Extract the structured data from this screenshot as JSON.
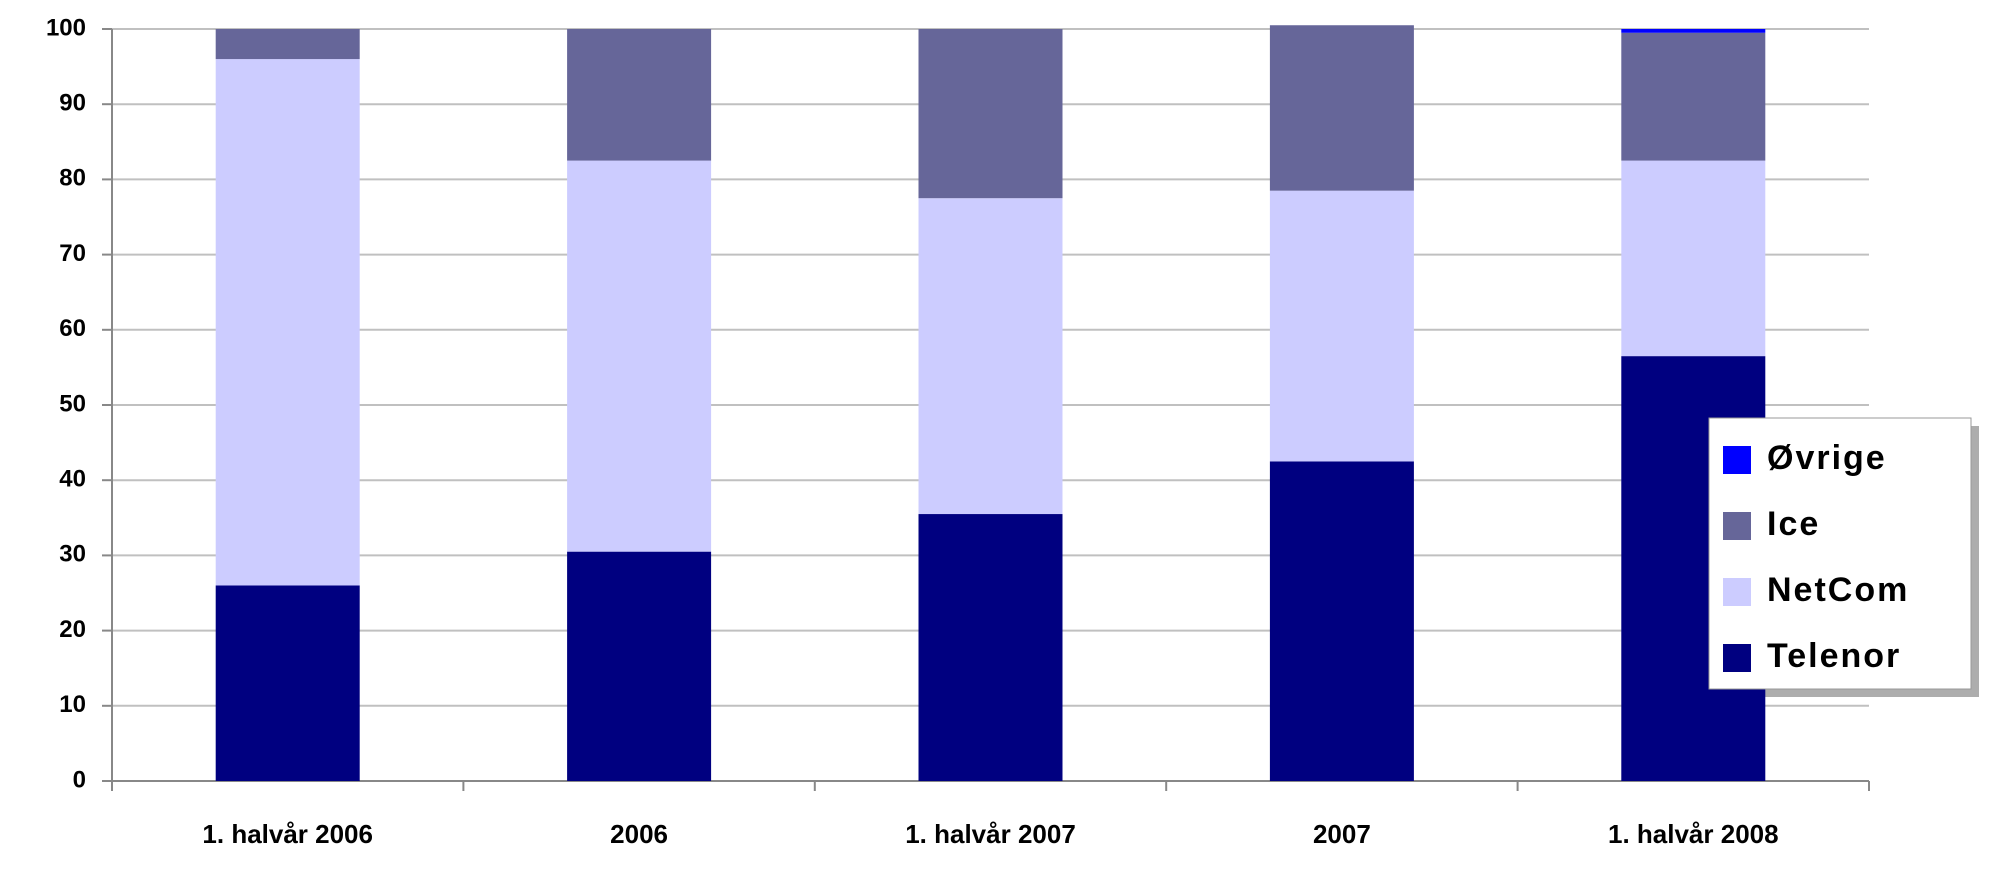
{
  "chart_data": {
    "type": "stacked_bar",
    "categories": [
      "1. halvår 2006",
      "2006",
      "1. halvår 2007",
      "2007",
      "1. halvår 2008"
    ],
    "series": [
      {
        "name": "Telenor",
        "color": "#000080",
        "values": [
          26,
          30.5,
          35.5,
          42.5,
          56.5
        ]
      },
      {
        "name": "NetCom",
        "color": "#ccccff",
        "values": [
          70,
          52,
          42,
          36,
          26
        ]
      },
      {
        "name": "Ice",
        "color": "#666699",
        "values": [
          4,
          17.5,
          22.5,
          22,
          17
        ]
      },
      {
        "name": "Øvrige",
        "color": "#0000ff",
        "values": [
          0,
          0,
          0,
          0,
          0.5
        ]
      }
    ],
    "ylim": [
      0,
      100
    ],
    "yticks": [
      0,
      10,
      20,
      30,
      40,
      50,
      60,
      70,
      80,
      90,
      100
    ],
    "grid": true,
    "legend": "right"
  }
}
